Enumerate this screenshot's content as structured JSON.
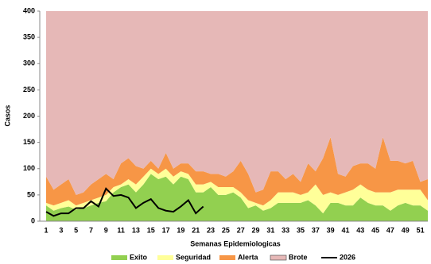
{
  "chart_data": {
    "type": "stacked-area-line",
    "xlabel": "Semanas Epidemiologicas",
    "ylabel": "Casos",
    "categories": [
      1,
      null,
      3,
      null,
      5,
      null,
      7,
      null,
      9,
      null,
      11,
      null,
      13,
      null,
      15,
      null,
      17,
      null,
      19,
      null,
      21,
      null,
      23,
      null,
      25,
      null,
      27,
      null,
      29,
      null,
      31,
      null,
      33,
      null,
      35,
      null,
      37,
      null,
      39,
      null,
      41,
      null,
      43,
      null,
      45,
      null,
      47,
      null,
      49,
      null,
      51,
      null
    ],
    "ylim": [
      0,
      400
    ],
    "yticks": [
      0,
      50,
      100,
      150,
      200,
      250,
      300,
      350,
      400
    ],
    "series": [
      {
        "name": "Exito",
        "color": "#92d050",
        "stack": true,
        "values": [
          30,
          20,
          25,
          28,
          22,
          25,
          30,
          35,
          38,
          55,
          65,
          70,
          55,
          70,
          90,
          80,
          85,
          70,
          85,
          80,
          55,
          55,
          65,
          50,
          50,
          55,
          45,
          25,
          30,
          20,
          25,
          35,
          35,
          35,
          35,
          40,
          30,
          15,
          35,
          35,
          30,
          30,
          45,
          35,
          30,
          30,
          20,
          30,
          35,
          30,
          30,
          20
        ]
      },
      {
        "name": "Seguridad",
        "color": "#ffff99",
        "stack": true,
        "values": [
          5,
          10,
          10,
          12,
          8,
          10,
          10,
          10,
          12,
          10,
          5,
          10,
          15,
          15,
          10,
          10,
          15,
          15,
          10,
          10,
          15,
          15,
          10,
          15,
          15,
          10,
          10,
          15,
          5,
          10,
          15,
          20,
          20,
          20,
          15,
          15,
          40,
          35,
          20,
          15,
          25,
          30,
          25,
          25,
          25,
          25,
          35,
          30,
          25,
          30,
          30,
          20
        ]
      },
      {
        "name": "Alerta",
        "color": "#f79646",
        "stack": true,
        "values": [
          50,
          30,
          35,
          40,
          20,
          20,
          30,
          35,
          40,
          15,
          40,
          40,
          35,
          15,
          15,
          10,
          30,
          15,
          15,
          20,
          25,
          25,
          15,
          25,
          20,
          30,
          60,
          50,
          20,
          30,
          55,
          40,
          25,
          35,
          25,
          55,
          25,
          70,
          105,
          40,
          30,
          45,
          40,
          50,
          45,
          105,
          60,
          55,
          50,
          55,
          15,
          40
        ]
      },
      {
        "name": "Brote",
        "color": "#e6b8b7",
        "stack": true,
        "values": [
          315,
          340,
          330,
          320,
          350,
          345,
          330,
          320,
          310,
          320,
          290,
          280,
          295,
          300,
          285,
          300,
          270,
          300,
          290,
          290,
          305,
          305,
          310,
          310,
          315,
          305,
          285,
          310,
          345,
          340,
          305,
          305,
          320,
          310,
          325,
          290,
          305,
          280,
          240,
          310,
          315,
          295,
          290,
          290,
          300,
          240,
          285,
          285,
          290,
          285,
          325,
          320
        ]
      },
      {
        "name": "2026",
        "color": "#000000",
        "stack": false,
        "values": [
          18,
          10,
          15,
          15,
          25,
          25,
          38,
          28,
          62,
          48,
          50,
          45,
          25,
          35,
          42,
          25,
          20,
          18,
          28,
          40,
          15,
          28,
          null,
          null,
          null,
          null,
          null,
          null,
          null,
          null,
          null,
          null,
          null,
          null,
          null,
          null,
          null,
          null,
          null,
          null,
          null,
          null,
          null,
          null,
          null,
          null,
          null,
          null,
          null,
          null,
          null,
          null
        ]
      }
    ]
  }
}
